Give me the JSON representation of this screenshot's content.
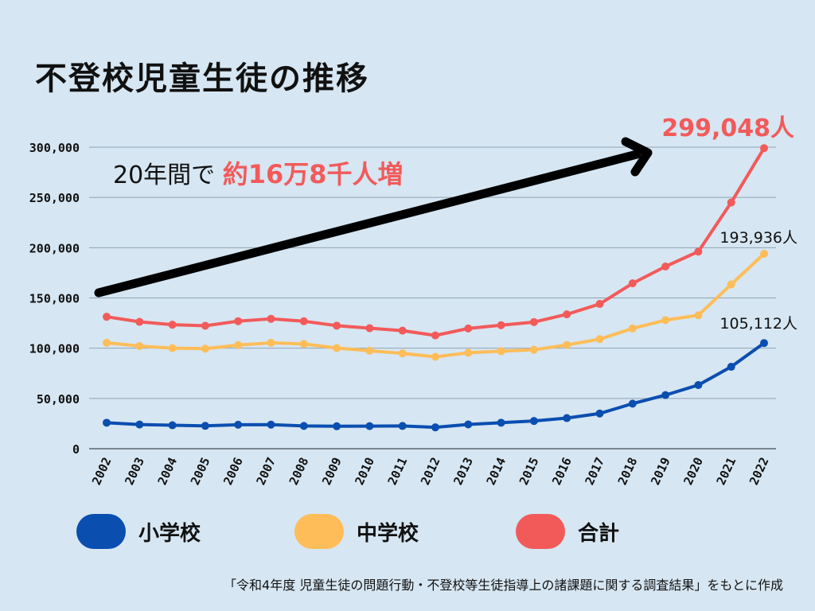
{
  "chart_data": {
    "type": "line",
    "title": "不登校児童生徒の推移",
    "x": [
      "2002",
      "2003",
      "2004",
      "2005",
      "2006",
      "2007",
      "2008",
      "2009",
      "2010",
      "2011",
      "2012",
      "2013",
      "2014",
      "2015",
      "2016",
      "2017",
      "2018",
      "2019",
      "2020",
      "2021",
      "2022"
    ],
    "y_ticks": [
      "0",
      "50,000",
      "100,000",
      "150,000",
      "200,000",
      "250,000",
      "300,000"
    ],
    "ylim": [
      0,
      300000
    ],
    "grid": true,
    "series": [
      {
        "name": "小学校",
        "color": "#0a4eb0",
        "values": [
          25869,
          24077,
          23318,
          22709,
          23825,
          23927,
          22652,
          22327,
          22463,
          22622,
          21243,
          24175,
          25864,
          27583,
          30448,
          35032,
          44841,
          53350,
          63350,
          81498,
          105112
        ]
      },
      {
        "name": "中学校",
        "color": "#ffbd59",
        "values": [
          105383,
          102149,
          100040,
          99578,
          103069,
          105328,
          104153,
          100105,
          97428,
          94836,
          91446,
          95442,
          97033,
          98408,
          103235,
          108999,
          119687,
          127922,
          132777,
          163442,
          193936
        ]
      },
      {
        "name": "合計",
        "color": "#f25a5a",
        "values": [
          131252,
          126226,
          123358,
          122287,
          126894,
          129255,
          126805,
          122432,
          119891,
          117458,
          112689,
          119617,
          122897,
          125991,
          133683,
          144031,
          164528,
          181272,
          196127,
          244940,
          299048
        ]
      }
    ],
    "annotation": {
      "prefix": "20年間で ",
      "highlight": "約16万8千人増"
    },
    "end_labels": {
      "total": "299,048人",
      "middle": "193,936人",
      "elementary": "105,112人"
    },
    "legend": "bottom"
  },
  "source": "「令和4年度 児童生徒の問題行動・不登校等生徒指導上の諸課題に関する調査結果」をもとに作成"
}
